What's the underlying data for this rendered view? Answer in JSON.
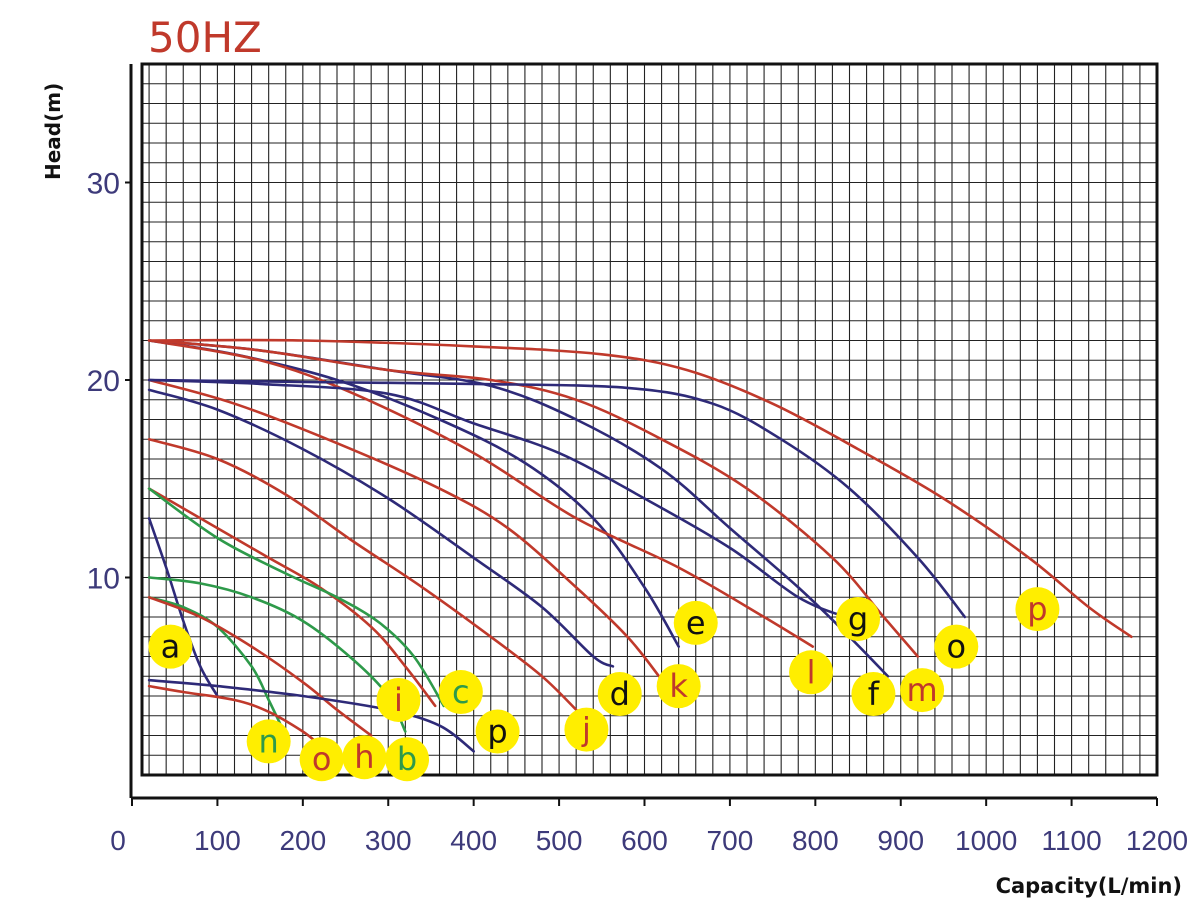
{
  "chart_data": {
    "type": "line",
    "title": "50HZ",
    "xlabel": "Capacity(L/min)",
    "ylabel": "Head(m)",
    "xlim": [
      0,
      1200
    ],
    "ylim": [
      0,
      36
    ],
    "x_ticks": [
      "0",
      "100",
      "200",
      "300",
      "400",
      "500",
      "600",
      "700",
      "800",
      "900",
      "1000",
      "1100",
      "1200"
    ],
    "y_ticks": [
      {
        "label": "10",
        "value": 10
      },
      {
        "label": "20",
        "value": 20
      },
      {
        "label": "30",
        "value": 30
      }
    ],
    "grid": true,
    "colors": {
      "blue": "#2e2a78",
      "red": "#c0392b",
      "green": "#2e9a4a",
      "label_bg": "#ffee00"
    },
    "series": [
      {
        "name": "a",
        "color": "blue",
        "label_color": "#111111",
        "label_at": [
          45,
          6.5
        ],
        "points": [
          [
            20,
            13
          ],
          [
            40,
            10.5
          ],
          [
            60,
            7.8
          ],
          [
            80,
            5.5
          ],
          [
            100,
            4
          ]
        ]
      },
      {
        "name": "n",
        "color": "green",
        "label_color": "#2e9a4a",
        "label_at": [
          160,
          1.7
        ],
        "points": [
          [
            20,
            9
          ],
          [
            60,
            8.5
          ],
          [
            100,
            7.5
          ],
          [
            140,
            5.5
          ],
          [
            160,
            3.8
          ],
          [
            180,
            2
          ]
        ]
      },
      {
        "name": "o",
        "color": "red",
        "label_color": "#c0392b",
        "label_at": [
          222,
          0.8
        ],
        "points": [
          [
            20,
            4.5
          ],
          [
            60,
            4.2
          ],
          [
            120,
            3.8
          ],
          [
            160,
            3.2
          ],
          [
            200,
            2.2
          ],
          [
            220,
            1.5
          ]
        ]
      },
      {
        "name": "h",
        "color": "red",
        "label_color": "#c0392b",
        "label_at": [
          272,
          0.9
        ],
        "points": [
          [
            20,
            9
          ],
          [
            80,
            8
          ],
          [
            140,
            6.5
          ],
          [
            200,
            4.7
          ],
          [
            240,
            3.3
          ],
          [
            280,
            2
          ]
        ]
      },
      {
        "name": "b",
        "color": "green",
        "label_color": "#2e9a4a",
        "label_at": [
          322,
          0.8
        ],
        "points": [
          [
            20,
            10
          ],
          [
            80,
            9.7
          ],
          [
            140,
            9
          ],
          [
            200,
            7.8
          ],
          [
            260,
            5.8
          ],
          [
            300,
            4
          ],
          [
            320,
            2.2
          ]
        ]
      },
      {
        "name": "i",
        "color": "red",
        "label_color": "#c0392b",
        "label_at": [
          312,
          3.8
        ],
        "points": [
          [
            20,
            14.5
          ],
          [
            100,
            12.5
          ],
          [
            160,
            11
          ],
          [
            220,
            9.5
          ],
          [
            280,
            7.5
          ],
          [
            320,
            5.5
          ],
          [
            355,
            3.5
          ]
        ]
      },
      {
        "name": "c",
        "color": "green",
        "label_color": "#2e9a4a",
        "label_at": [
          385,
          4.2
        ],
        "points": [
          [
            20,
            14.5
          ],
          [
            100,
            12
          ],
          [
            180,
            10.2
          ],
          [
            240,
            9
          ],
          [
            290,
            7.7
          ],
          [
            330,
            6
          ],
          [
            365,
            3.5
          ]
        ]
      },
      {
        "name": "p",
        "color": "blue",
        "label_color": "#111111",
        "label_at": [
          428,
          2.2
        ],
        "points": [
          [
            20,
            4.8
          ],
          [
            100,
            4.5
          ],
          [
            200,
            4
          ],
          [
            300,
            3.3
          ],
          [
            360,
            2.5
          ],
          [
            400,
            1.2
          ]
        ]
      },
      {
        "name": "j",
        "color": "red",
        "label_color": "#c0392b",
        "label_at": [
          532,
          2.3
        ],
        "points": [
          [
            20,
            17
          ],
          [
            100,
            16
          ],
          [
            180,
            14.2
          ],
          [
            260,
            11.8
          ],
          [
            340,
            9.5
          ],
          [
            420,
            7
          ],
          [
            480,
            5
          ],
          [
            520,
            3.3
          ]
        ]
      },
      {
        "name": "d",
        "color": "blue",
        "label_color": "#111111",
        "label_at": [
          571,
          4.1
        ],
        "points": [
          [
            20,
            19.5
          ],
          [
            100,
            18.5
          ],
          [
            200,
            16.5
          ],
          [
            300,
            14
          ],
          [
            400,
            11
          ],
          [
            480,
            8.5
          ],
          [
            540,
            6
          ],
          [
            563,
            5.5
          ]
        ]
      },
      {
        "name": "k",
        "color": "red",
        "label_color": "#c0392b",
        "label_at": [
          640,
          4.5
        ],
        "points": [
          [
            20,
            20
          ],
          [
            120,
            18.8
          ],
          [
            240,
            16.8
          ],
          [
            360,
            14.5
          ],
          [
            440,
            12.5
          ],
          [
            520,
            9.5
          ],
          [
            580,
            7
          ],
          [
            617,
            5
          ]
        ]
      },
      {
        "name": "e",
        "color": "blue",
        "label_color": "#111111",
        "label_at": [
          660,
          7.7
        ],
        "points": [
          [
            20,
            22
          ],
          [
            120,
            21.3
          ],
          [
            240,
            20
          ],
          [
            360,
            18
          ],
          [
            460,
            15.8
          ],
          [
            540,
            13
          ],
          [
            600,
            9.5
          ],
          [
            640,
            6.5
          ]
        ]
      },
      {
        "name": "l",
        "color": "red",
        "label_color": "#c0392b",
        "label_at": [
          795,
          5.2
        ],
        "points": [
          [
            20,
            22
          ],
          [
            150,
            21
          ],
          [
            260,
            19.3
          ],
          [
            400,
            16.3
          ],
          [
            520,
            13
          ],
          [
            640,
            10.5
          ],
          [
            740,
            8
          ],
          [
            797,
            6.5
          ]
        ]
      },
      {
        "name": "g",
        "color": "blue",
        "label_color": "#111111",
        "label_at": [
          850,
          7.9
        ],
        "points": [
          [
            20,
            20
          ],
          [
            150,
            19.8
          ],
          [
            300,
            19.3
          ],
          [
            400,
            17.8
          ],
          [
            500,
            16.3
          ],
          [
            600,
            14
          ],
          [
            700,
            11.5
          ],
          [
            780,
            9
          ],
          [
            835,
            8
          ]
        ]
      },
      {
        "name": "f",
        "color": "blue",
        "label_color": "#111111",
        "label_at": [
          868,
          4.1
        ],
        "points": [
          [
            20,
            22
          ],
          [
            150,
            21.5
          ],
          [
            300,
            20.5
          ],
          [
            420,
            19.7
          ],
          [
            520,
            18
          ],
          [
            620,
            15.5
          ],
          [
            700,
            12.5
          ],
          [
            780,
            9.5
          ],
          [
            840,
            7
          ],
          [
            885,
            5
          ]
        ]
      },
      {
        "name": "m",
        "color": "red",
        "label_color": "#c0392b",
        "label_at": [
          925,
          4.3
        ],
        "points": [
          [
            20,
            22
          ],
          [
            150,
            21.5
          ],
          [
            300,
            20.5
          ],
          [
            420,
            20
          ],
          [
            520,
            19
          ],
          [
            620,
            17
          ],
          [
            720,
            14.5
          ],
          [
            820,
            11
          ],
          [
            880,
            8
          ],
          [
            920,
            6
          ]
        ]
      },
      {
        "name": "o",
        "color": "blue",
        "label_color": "#111111",
        "label_at": [
          965,
          6.5
        ],
        "points": [
          [
            20,
            20
          ],
          [
            200,
            19.9
          ],
          [
            400,
            19.8
          ],
          [
            580,
            19.6
          ],
          [
            680,
            18.8
          ],
          [
            760,
            17
          ],
          [
            840,
            14.5
          ],
          [
            920,
            11
          ],
          [
            975,
            8
          ]
        ]
      },
      {
        "name": "p",
        "color": "red",
        "label_color": "#c0392b",
        "label_at": [
          1060,
          8.4
        ],
        "points": [
          [
            20,
            22
          ],
          [
            200,
            22
          ],
          [
            400,
            21.7
          ],
          [
            550,
            21.3
          ],
          [
            650,
            20.5
          ],
          [
            750,
            18.8
          ],
          [
            850,
            16.5
          ],
          [
            950,
            14
          ],
          [
            1050,
            11
          ],
          [
            1120,
            8.5
          ],
          [
            1170,
            7
          ]
        ]
      }
    ]
  }
}
